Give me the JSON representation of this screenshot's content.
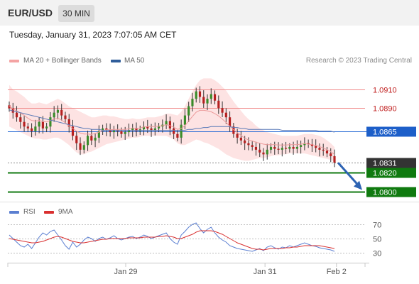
{
  "header": {
    "pair": "EUR/USD",
    "timeframe": "30 MIN",
    "datetime": "Tuesday, January 31, 2023 7:07:05 AM CET"
  },
  "legend": {
    "bollinger": "MA 20 + Bollinger Bands",
    "ma50": "MA 50",
    "credit": "Research © 2023 Trading Central"
  },
  "rsi_legend": {
    "rsi": "RSI",
    "ma9": "9MA"
  },
  "colors": {
    "up": "#3a8c2a",
    "down": "#b52020",
    "ma50": "#5a7ab8",
    "bollinger": "#f7b7b7",
    "pivot_line": "#2f6fd6",
    "support": "#1f8a1f",
    "resistance": "#e05050",
    "rsi": "#5b7fd1",
    "rsi_ma": "#d93030"
  },
  "chart_data": {
    "type": "candlestick",
    "instrument": "EUR/USD",
    "timeframe": "30 MIN",
    "ylim": [
      1.0792,
      1.093
    ],
    "levels": [
      {
        "kind": "resistance",
        "value": 1.091,
        "label": "1.0910"
      },
      {
        "kind": "resistance",
        "value": 1.089,
        "label": "1.0890"
      },
      {
        "kind": "pivot",
        "value": 1.0865,
        "label": "1.0865"
      },
      {
        "kind": "current",
        "value": 1.0831,
        "label": "1.0831"
      },
      {
        "kind": "support",
        "value": 1.082,
        "label": "1.0820"
      },
      {
        "kind": "support",
        "value": 1.08,
        "label": "1.0800"
      }
    ],
    "x_tick_labels": [
      "Jan 29",
      "Jan 31",
      "Feb 2"
    ],
    "x_tick_positions": [
      0.33,
      0.72,
      0.92
    ],
    "projection": {
      "from": 1.0831,
      "to": 1.08
    },
    "closes": [
      1.089,
      1.0885,
      1.088,
      1.0875,
      1.087,
      1.0868,
      1.0865,
      1.087,
      1.0875,
      1.0868,
      1.087,
      1.088,
      1.0885,
      1.0888,
      1.0882,
      1.0878,
      1.087,
      1.086,
      1.0852,
      1.0845,
      1.085,
      1.086,
      1.0855,
      1.0858,
      1.0865,
      1.0868,
      1.0866,
      1.0864,
      1.0866,
      1.0865,
      1.0862,
      1.0864,
      1.0866,
      1.0868,
      1.0865,
      1.0867,
      1.087,
      1.0868,
      1.0866,
      1.0868,
      1.087,
      1.0872,
      1.0876,
      1.0868,
      1.0862,
      1.0858,
      1.0872,
      1.0882,
      1.0892,
      1.09,
      1.0908,
      1.0902,
      1.0895,
      1.09,
      1.0905,
      1.0898,
      1.089,
      1.0885,
      1.088,
      1.087,
      1.0862,
      1.0858,
      1.0855,
      1.0852,
      1.085,
      1.0848,
      1.0845,
      1.0842,
      1.084,
      1.0845,
      1.0848,
      1.0846,
      1.0845,
      1.0847,
      1.0846,
      1.0848,
      1.0846,
      1.0848,
      1.085,
      1.0852,
      1.0851,
      1.0849,
      1.0847,
      1.0845,
      1.0844,
      1.0841,
      1.0838,
      1.0831
    ],
    "bollinger_upper": [
      1.0915,
      1.091,
      1.0908,
      1.0905,
      1.0902,
      1.0898,
      1.0895,
      1.0895,
      1.0896,
      1.0895,
      1.0894,
      1.0896,
      1.0898,
      1.09,
      1.0898,
      1.0895,
      1.0892,
      1.089,
      1.0888,
      1.0886,
      1.0884,
      1.0882,
      1.088,
      1.088,
      1.0881,
      1.0882,
      1.0882,
      1.0881,
      1.0881,
      1.088,
      1.0879,
      1.0878,
      1.0878,
      1.0879,
      1.0878,
      1.0878,
      1.0879,
      1.088,
      1.088,
      1.088,
      1.0881,
      1.0882,
      1.0884,
      1.0884,
      1.0883,
      1.0882,
      1.0886,
      1.0892,
      1.09,
      1.0908,
      1.0915,
      1.092,
      1.0922,
      1.0922,
      1.0922,
      1.092,
      1.0917,
      1.0913,
      1.0909,
      1.0903,
      1.0897,
      1.0892,
      1.0887,
      1.0882,
      1.0878,
      1.0875,
      1.0871,
      1.0868,
      1.0866,
      1.0864,
      1.0863,
      1.0862,
      1.0861,
      1.086,
      1.086,
      1.086,
      1.086,
      1.086,
      1.0861,
      1.0862,
      1.0862,
      1.0862,
      1.0861,
      1.086,
      1.0858,
      1.0855,
      1.0852,
      1.0848
    ],
    "bollinger_lower": [
      1.087,
      1.0868,
      1.0866,
      1.0864,
      1.0862,
      1.086,
      1.0858,
      1.0857,
      1.0857,
      1.0856,
      1.0856,
      1.0857,
      1.0858,
      1.0858,
      1.0856,
      1.0853,
      1.085,
      1.0846,
      1.0842,
      1.084,
      1.084,
      1.0842,
      1.0843,
      1.0845,
      1.0847,
      1.0849,
      1.0851,
      1.0852,
      1.0853,
      1.0854,
      1.0855,
      1.0856,
      1.0857,
      1.0858,
      1.0858,
      1.0859,
      1.086,
      1.086,
      1.086,
      1.086,
      1.086,
      1.086,
      1.086,
      1.0858,
      1.0856,
      1.0852,
      1.085,
      1.085,
      1.0852,
      1.0854,
      1.0856,
      1.0855,
      1.0853,
      1.0852,
      1.085,
      1.0848,
      1.0846,
      1.0843,
      1.084,
      1.0838,
      1.0836,
      1.0835,
      1.0834,
      1.0833,
      1.0833,
      1.0834,
      1.0835,
      1.0836,
      1.0836,
      1.0837,
      1.0838,
      1.0839,
      1.0839,
      1.084,
      1.084,
      1.0841,
      1.0841,
      1.0841,
      1.0841,
      1.0841,
      1.084,
      1.0839,
      1.0838,
      1.0837,
      1.0836,
      1.0835,
      1.0834,
      1.0832
    ],
    "ma50": [
      1.0888,
      1.0887,
      1.0886,
      1.0885,
      1.0884,
      1.0883,
      1.0882,
      1.0881,
      1.088,
      1.0879,
      1.0878,
      1.0877,
      1.0876,
      1.0875,
      1.0874,
      1.0873,
      1.0872,
      1.0871,
      1.087,
      1.0869,
      1.0868,
      1.0868,
      1.0867,
      1.0867,
      1.0867,
      1.0866,
      1.0866,
      1.0866,
      1.0866,
      1.0866,
      1.0866,
      1.0866,
      1.0866,
      1.0866,
      1.0866,
      1.0866,
      1.0866,
      1.0866,
      1.0866,
      1.0866,
      1.0866,
      1.0866,
      1.0866,
      1.0866,
      1.0866,
      1.0866,
      1.0866,
      1.0866,
      1.0867,
      1.0867,
      1.0868,
      1.0868,
      1.0869,
      1.0869,
      1.087,
      1.087,
      1.087,
      1.087,
      1.087,
      1.087,
      1.0869,
      1.0869,
      1.0868,
      1.0868,
      1.0867,
      1.0867,
      1.0867,
      1.0867,
      1.0867,
      1.0867,
      1.0867,
      1.0867,
      1.0867,
      1.0866,
      1.0866,
      1.0866,
      1.0866,
      1.0866,
      1.0866,
      1.0866,
      1.0866,
      1.0866,
      1.0866,
      1.0865,
      1.0865,
      1.0865,
      1.0865,
      1.0864
    ],
    "rsi": {
      "ylim": [
        20,
        80
      ],
      "levels": [
        70,
        50,
        30
      ],
      "rsi_values": [
        55,
        50,
        45,
        40,
        38,
        42,
        36,
        44,
        52,
        58,
        55,
        60,
        62,
        55,
        48,
        40,
        35,
        45,
        38,
        42,
        48,
        52,
        50,
        46,
        50,
        52,
        49,
        51,
        54,
        50,
        48,
        50,
        52,
        53,
        50,
        52,
        55,
        53,
        50,
        52,
        54,
        56,
        58,
        50,
        45,
        42,
        55,
        60,
        66,
        70,
        72,
        64,
        58,
        63,
        66,
        58,
        52,
        48,
        45,
        40,
        38,
        36,
        35,
        34,
        33,
        32,
        34,
        36,
        33,
        38,
        40,
        37,
        35,
        38,
        37,
        40,
        38,
        40,
        42,
        44,
        42,
        40,
        39,
        37,
        36,
        35,
        34,
        32
      ],
      "ma9_values": [
        50,
        49,
        48,
        47,
        46,
        45,
        44,
        44,
        45,
        46,
        48,
        50,
        52,
        53,
        52,
        50,
        48,
        46,
        45,
        44,
        44,
        45,
        46,
        47,
        48,
        49,
        49,
        50,
        50,
        50,
        50,
        50,
        51,
        51,
        51,
        51,
        52,
        52,
        52,
        52,
        53,
        53,
        54,
        53,
        52,
        50,
        50,
        52,
        54,
        56,
        59,
        61,
        61,
        61,
        61,
        60,
        58,
        56,
        53,
        50,
        47,
        44,
        42,
        40,
        38,
        36,
        35,
        35,
        34,
        35,
        36,
        36,
        36,
        36,
        37,
        37,
        38,
        38,
        39,
        40,
        40,
        40,
        40,
        40,
        39,
        38,
        37,
        36
      ]
    }
  }
}
